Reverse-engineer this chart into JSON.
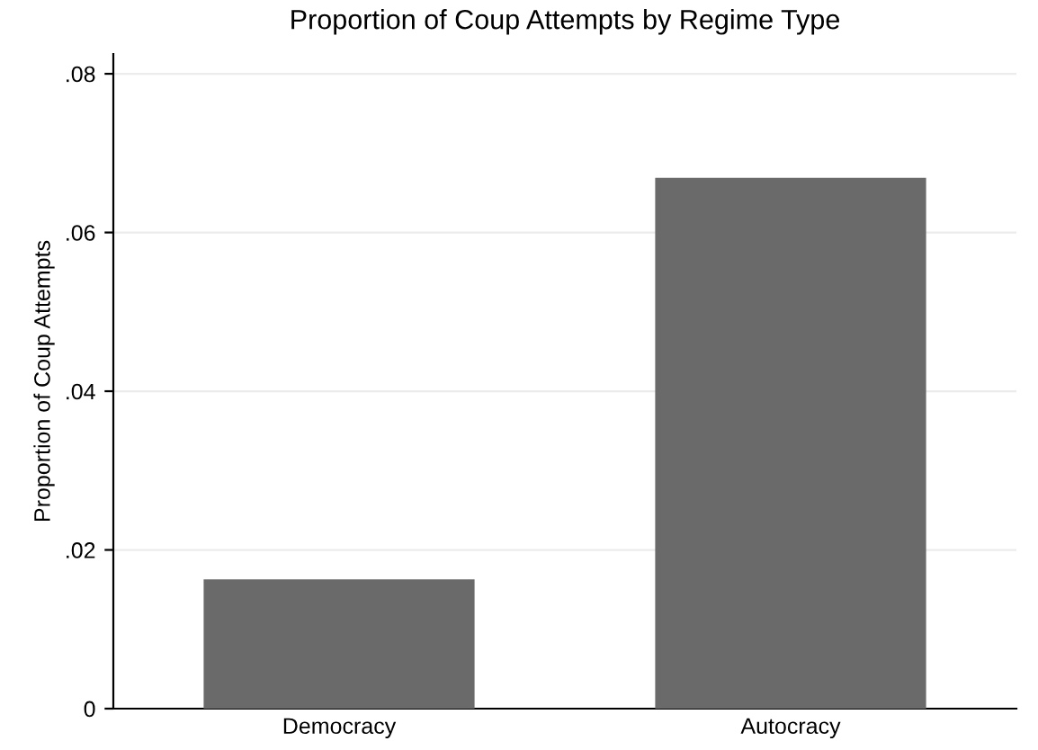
{
  "chart_data": {
    "type": "bar",
    "title": "Proportion of Coup Attempts by Regime Type",
    "ylabel": "Proportion of Coup Attempts",
    "categories": [
      "Democracy",
      "Autocracy"
    ],
    "values": [
      0.0163,
      0.0669
    ],
    "color": "#6a6a6a",
    "ylim": [
      0,
      0.0825
    ],
    "yticks": [
      {
        "value": 0,
        "label": "0"
      },
      {
        "value": 0.02,
        "label": ".02"
      },
      {
        "value": 0.04,
        "label": ".04"
      },
      {
        "value": 0.06,
        "label": ".06"
      },
      {
        "value": 0.08,
        "label": ".08"
      }
    ],
    "grid": "y"
  }
}
